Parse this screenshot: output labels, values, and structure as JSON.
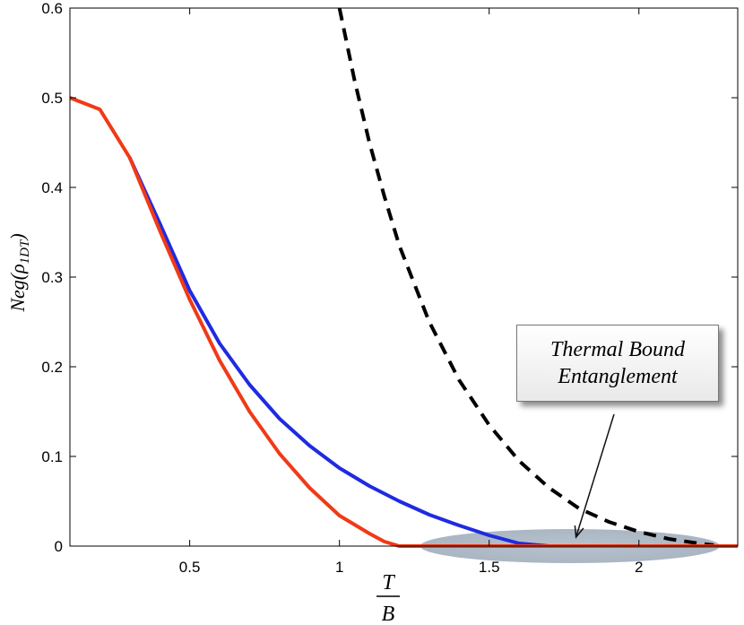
{
  "chart_data": {
    "type": "line",
    "xlabel_numerator": "T",
    "xlabel_denominator": "B",
    "ylabel": "Neg(ρ1DT)",
    "ylabel_base": "Neg(ρ",
    "ylabel_sub": "1DT",
    "ylabel_close": ")",
    "xlim": [
      0.1,
      2.33
    ],
    "ylim": [
      0,
      0.6
    ],
    "x_ticks": [
      0.5,
      1,
      1.5,
      2
    ],
    "x_tick_labels": [
      "0.5",
      "1",
      "1.5",
      "2"
    ],
    "y_ticks": [
      0,
      0.1,
      0.2,
      0.3,
      0.4,
      0.5,
      0.6
    ],
    "y_tick_labels": [
      "0",
      "0.1",
      "0.2",
      "0.3",
      "0.4",
      "0.5",
      "0.6"
    ],
    "grid": false,
    "series": [
      {
        "color": "#1f2be0",
        "style": "solid",
        "x": [
          0.3,
          0.4,
          0.5,
          0.6,
          0.7,
          0.8,
          0.9,
          1.0,
          1.1,
          1.2,
          1.3,
          1.4,
          1.5,
          1.6,
          1.7,
          1.8
        ],
        "y": [
          0.433,
          0.36,
          0.285,
          0.226,
          0.18,
          0.142,
          0.112,
          0.087,
          0.067,
          0.05,
          0.035,
          0.023,
          0.012,
          0.003,
          0.0,
          0.0
        ]
      },
      {
        "color": "#f03a17",
        "style": "solid",
        "x": [
          0.1,
          0.2,
          0.3,
          0.4,
          0.5,
          0.6,
          0.7,
          0.8,
          0.9,
          1.0,
          1.1,
          1.15,
          1.2,
          1.5,
          2.0,
          2.33
        ],
        "y": [
          0.5,
          0.487,
          0.433,
          0.352,
          0.275,
          0.207,
          0.15,
          0.103,
          0.065,
          0.034,
          0.014,
          0.005,
          0.0,
          0.0,
          0.0,
          0.0
        ]
      },
      {
        "color": "#000000",
        "style": "dashed",
        "x": [
          1.0,
          1.05,
          1.1,
          1.15,
          1.2,
          1.3,
          1.4,
          1.5,
          1.6,
          1.7,
          1.8,
          1.9,
          2.0,
          2.1,
          2.2,
          2.25
        ],
        "y": [
          0.6,
          0.52,
          0.45,
          0.39,
          0.335,
          0.25,
          0.185,
          0.135,
          0.095,
          0.065,
          0.042,
          0.027,
          0.016,
          0.008,
          0.003,
          0.001
        ]
      }
    ],
    "annotation": {
      "lines": [
        "Thermal Bound",
        "Entanglement"
      ],
      "target_region_x": [
        1.27,
        2.27
      ],
      "arrow_target": [
        1.79,
        0.01
      ]
    }
  }
}
